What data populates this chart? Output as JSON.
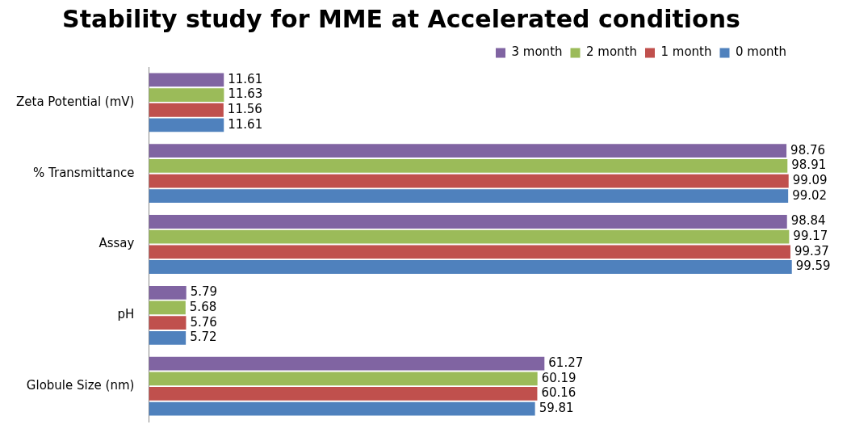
{
  "chart_data": {
    "type": "bar",
    "orientation": "horizontal",
    "title": "Stability study for MME at Accelerated conditions",
    "categories": [
      "Zeta Potential (mV)",
      "% Transmittance",
      "Assay",
      "pH",
      "Globule Size (nm)"
    ],
    "series": [
      {
        "name": "3 month",
        "color": "#8064a2",
        "values": [
          11.61,
          98.76,
          98.84,
          5.79,
          61.27
        ]
      },
      {
        "name": "2 month",
        "color": "#9bbb59",
        "values": [
          11.63,
          98.91,
          99.17,
          5.68,
          60.19
        ]
      },
      {
        "name": "1 month",
        "color": "#c0504d",
        "values": [
          11.56,
          99.09,
          99.37,
          5.76,
          60.16
        ]
      },
      {
        "name": "0 month",
        "color": "#4f81bd",
        "values": [
          11.61,
          99.02,
          99.59,
          5.72,
          59.81
        ]
      }
    ],
    "tick_labels": "y",
    "data_labels": true,
    "legend": "top right"
  }
}
